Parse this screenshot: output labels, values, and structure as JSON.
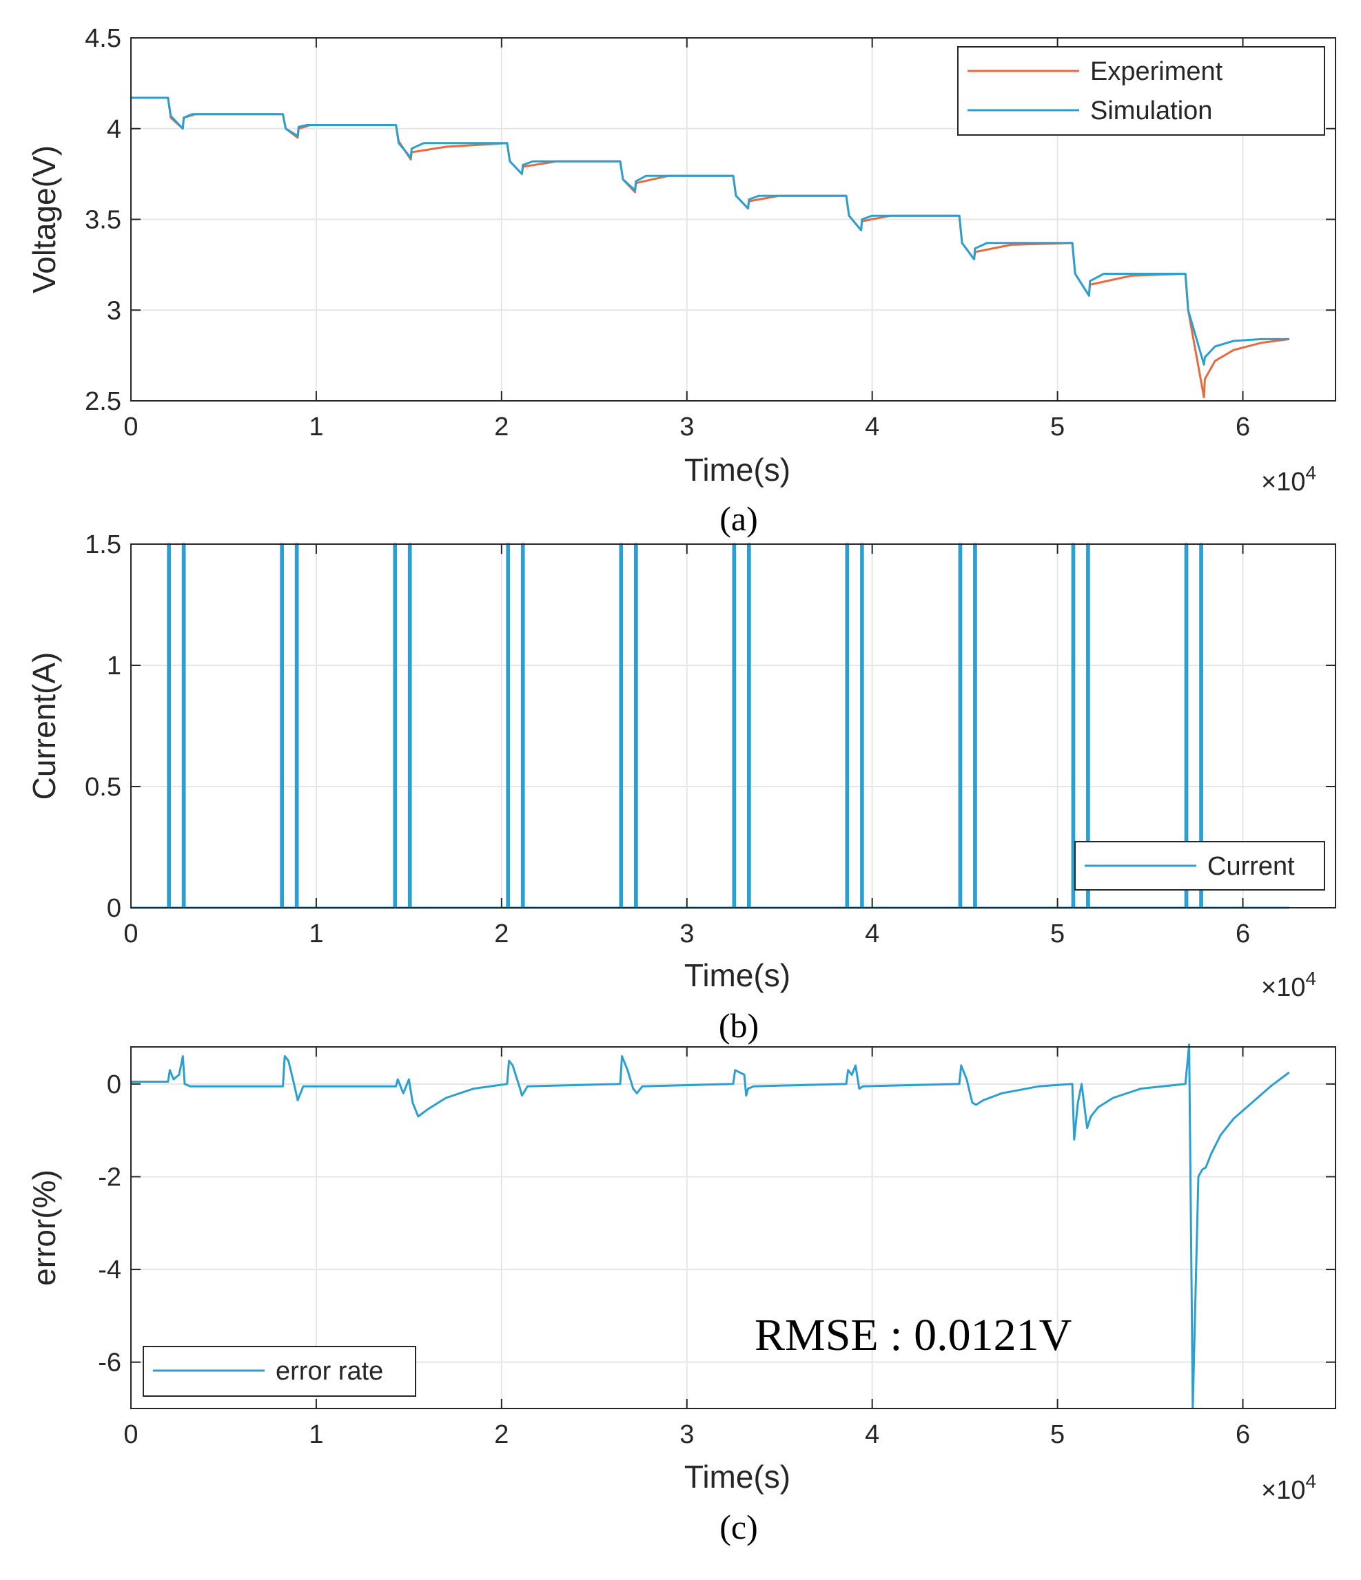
{
  "figure": {
    "captions": [
      "(a)",
      "(b)",
      "(c)"
    ],
    "annotation": "RMSE : 0.0121V"
  },
  "colors": {
    "experiment": "#E8693C",
    "simulation": "#2A9FD0",
    "grid": "#E6E6E6",
    "axis": "#262626"
  },
  "chart_data": [
    {
      "id": "a",
      "type": "line",
      "caption": "(a)",
      "xlabel": "Time(s)",
      "ylabel": "Voltage(V)",
      "x_exponent_label": "×10",
      "x_exponent": "4",
      "xlim": [
        0,
        65000
      ],
      "ylim": [
        2.5,
        4.5
      ],
      "xticks": [
        0,
        10000,
        20000,
        30000,
        40000,
        50000,
        60000
      ],
      "xtick_labels": [
        "0",
        "1",
        "2",
        "3",
        "4",
        "5",
        "6"
      ],
      "yticks": [
        2.5,
        3,
        3.5,
        4,
        4.5
      ],
      "ytick_labels": [
        "2.5",
        "3",
        "3.5",
        "4",
        "4.5"
      ],
      "grid": true,
      "legend_position": "top-right",
      "series": [
        {
          "name": "Experiment",
          "color_key": "experiment",
          "x": [
            0,
            2000,
            2150,
            2800,
            2850,
            3500,
            8200,
            8350,
            9000,
            9050,
            9700,
            14300,
            14450,
            15100,
            15150,
            17000,
            20300,
            20450,
            21100,
            21150,
            23000,
            26400,
            26550,
            27200,
            27250,
            29000,
            32500,
            32650,
            33300,
            33350,
            35000,
            38600,
            38750,
            39400,
            39450,
            41000,
            44700,
            44850,
            45500,
            45550,
            47500,
            50800,
            50950,
            51700,
            51750,
            54000,
            56900,
            57050,
            57900,
            57950,
            58500,
            59500,
            61000,
            62500
          ],
          "y": [
            4.17,
            4.17,
            4.06,
            4.0,
            4.06,
            4.08,
            4.08,
            4.0,
            3.95,
            4.0,
            4.02,
            4.02,
            3.93,
            3.83,
            3.87,
            3.9,
            3.92,
            3.82,
            3.75,
            3.79,
            3.82,
            3.82,
            3.72,
            3.65,
            3.7,
            3.74,
            3.74,
            3.63,
            3.56,
            3.6,
            3.63,
            3.63,
            3.52,
            3.44,
            3.49,
            3.52,
            3.52,
            3.37,
            3.28,
            3.32,
            3.36,
            3.37,
            3.2,
            3.08,
            3.14,
            3.19,
            3.2,
            3.0,
            2.52,
            2.62,
            2.72,
            2.78,
            2.82,
            2.84
          ]
        },
        {
          "name": "Simulation",
          "color_key": "simulation",
          "x": [
            0,
            2000,
            2150,
            2800,
            2850,
            3300,
            8200,
            8350,
            9000,
            9050,
            9500,
            14300,
            14450,
            15100,
            15150,
            15800,
            20300,
            20450,
            21100,
            21150,
            21700,
            26400,
            26550,
            27200,
            27250,
            27800,
            32500,
            32650,
            33300,
            33350,
            33900,
            38600,
            38750,
            39400,
            39450,
            40000,
            44700,
            44850,
            45500,
            45550,
            46200,
            50800,
            50950,
            51700,
            51750,
            52500,
            56900,
            57050,
            57900,
            57950,
            58500,
            59500,
            61000,
            62500
          ],
          "y": [
            4.17,
            4.17,
            4.07,
            4.0,
            4.06,
            4.08,
            4.08,
            4.0,
            3.96,
            4.01,
            4.02,
            4.02,
            3.92,
            3.84,
            3.89,
            3.92,
            3.92,
            3.82,
            3.75,
            3.8,
            3.82,
            3.82,
            3.72,
            3.66,
            3.71,
            3.74,
            3.74,
            3.63,
            3.56,
            3.61,
            3.63,
            3.63,
            3.52,
            3.44,
            3.5,
            3.52,
            3.52,
            3.37,
            3.28,
            3.34,
            3.37,
            3.37,
            3.2,
            3.08,
            3.16,
            3.2,
            3.2,
            3.0,
            2.7,
            2.74,
            2.8,
            2.83,
            2.84,
            2.84
          ]
        }
      ]
    },
    {
      "id": "b",
      "type": "line",
      "caption": "(b)",
      "xlabel": "Time(s)",
      "ylabel": "Current(A)",
      "x_exponent_label": "×10",
      "x_exponent": "4",
      "xlim": [
        0,
        65000
      ],
      "ylim": [
        0,
        1.5
      ],
      "xticks": [
        0,
        10000,
        20000,
        30000,
        40000,
        50000,
        60000
      ],
      "xtick_labels": [
        "0",
        "1",
        "2",
        "3",
        "4",
        "5",
        "6"
      ],
      "yticks": [
        0,
        0.5,
        1,
        1.5
      ],
      "ytick_labels": [
        "0",
        "0.5",
        "1",
        "1.5"
      ],
      "grid": true,
      "legend_position": "bottom-right",
      "series": [
        {
          "name": "Current",
          "color_key": "simulation",
          "pulses": [
            [
              2000,
              2100,
              2800,
              2900
            ],
            [
              8100,
              8200,
              8900,
              9000
            ],
            [
              14200,
              14300,
              15000,
              15100
            ],
            [
              20300,
              20400,
              21100,
              21200
            ],
            [
              26400,
              26500,
              27200,
              27300
            ],
            [
              32500,
              32600,
              33300,
              33400
            ],
            [
              38600,
              38700,
              39400,
              39500
            ],
            [
              44700,
              44800,
              45500,
              45600
            ],
            [
              50800,
              50900,
              51600,
              51700
            ],
            [
              56900,
              57000,
              57700,
              57800
            ]
          ],
          "high": 1.5,
          "low": 0,
          "x_end": 62500
        }
      ]
    },
    {
      "id": "c",
      "type": "line",
      "caption": "(c)",
      "xlabel": "Time(s)",
      "ylabel": "error(%)",
      "x_exponent_label": "×10",
      "x_exponent": "4",
      "xlim": [
        0,
        65000
      ],
      "ylim": [
        -7,
        0.8
      ],
      "xticks": [
        0,
        10000,
        20000,
        30000,
        40000,
        50000,
        60000
      ],
      "xtick_labels": [
        "0",
        "1",
        "2",
        "3",
        "4",
        "5",
        "6"
      ],
      "yticks": [
        -6,
        -4,
        -2,
        0
      ],
      "ytick_labels": [
        "-6",
        "-4",
        "-2",
        "0"
      ],
      "grid": true,
      "legend_position": "bottom-left",
      "series": [
        {
          "name": "error rate",
          "color_key": "simulation",
          "x": [
            0,
            2000,
            2100,
            2300,
            2600,
            2800,
            2900,
            3200,
            8200,
            8300,
            8500,
            8800,
            9000,
            9300,
            14300,
            14400,
            14700,
            15000,
            15200,
            15500,
            16000,
            17000,
            18500,
            20300,
            20400,
            20600,
            21000,
            21100,
            21400,
            26400,
            26500,
            26800,
            27100,
            27300,
            27600,
            32500,
            32600,
            33100,
            33200,
            33300,
            33600,
            38600,
            38700,
            38900,
            39100,
            39300,
            39500,
            44700,
            44800,
            45100,
            45400,
            45600,
            46000,
            47000,
            49000,
            50800,
            50900,
            51100,
            51300,
            51600,
            51800,
            52200,
            53000,
            54500,
            56900,
            57100,
            57300,
            57600,
            57800,
            58000,
            58300,
            58800,
            59500,
            60500,
            61500,
            62500
          ],
          "y": [
            0.05,
            0.05,
            0.3,
            0.1,
            0.2,
            0.6,
            0.0,
            -0.05,
            -0.05,
            0.6,
            0.5,
            0.0,
            -0.35,
            -0.05,
            -0.05,
            0.1,
            -0.2,
            0.1,
            -0.4,
            -0.7,
            -0.55,
            -0.3,
            -0.1,
            0.0,
            0.5,
            0.4,
            -0.1,
            -0.25,
            -0.05,
            0.0,
            0.6,
            0.3,
            -0.1,
            -0.2,
            -0.05,
            0.0,
            0.3,
            0.2,
            -0.25,
            -0.1,
            -0.05,
            0.0,
            0.3,
            0.2,
            0.4,
            -0.1,
            -0.05,
            0.0,
            0.4,
            0.1,
            -0.4,
            -0.45,
            -0.35,
            -0.2,
            -0.05,
            0.0,
            -1.2,
            -0.4,
            0.0,
            -0.95,
            -0.7,
            -0.5,
            -0.3,
            -0.1,
            0.0,
            0.85,
            -6.98,
            -2.0,
            -1.85,
            -1.8,
            -1.5,
            -1.1,
            -0.75,
            -0.4,
            -0.05,
            0.25
          ]
        }
      ]
    }
  ]
}
